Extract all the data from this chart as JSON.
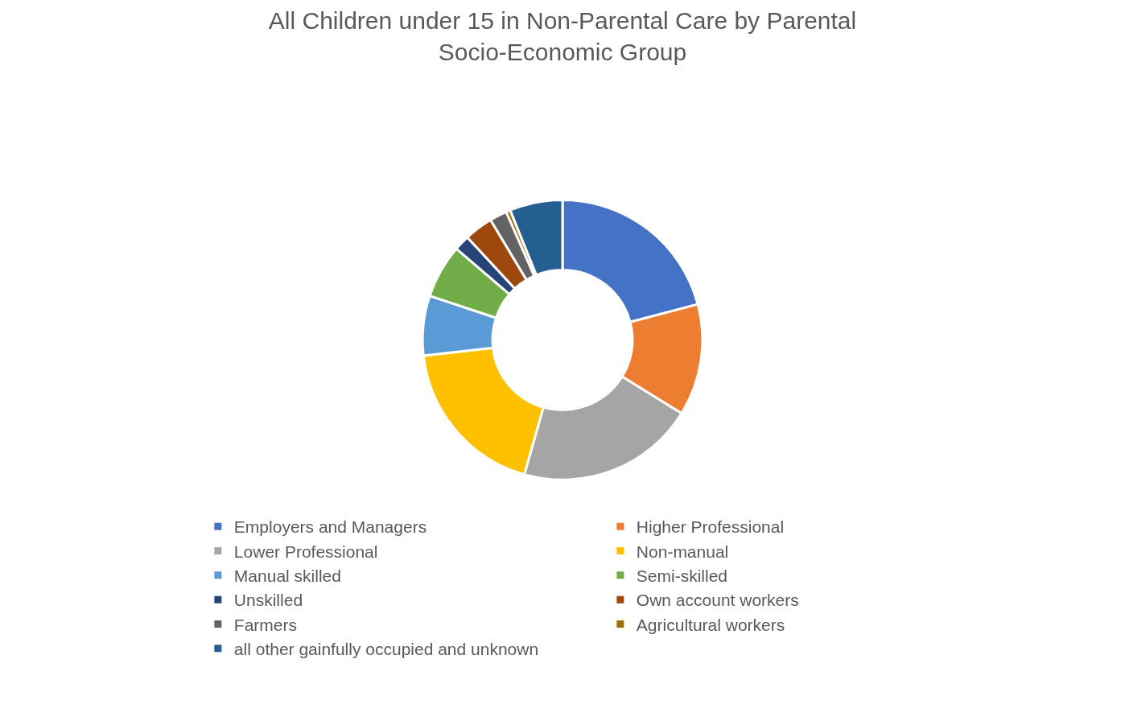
{
  "chart_data": {
    "type": "donut",
    "title": "All Children under 15 in Non-Parental Care by Parental Socio-Economic Group",
    "categories": [
      "Employers and Managers",
      "Higher Professional",
      "Lower Professional",
      "Non-manual",
      "Manual skilled",
      "Semi-skilled",
      "Unskilled",
      "Own account workers",
      "Farmers",
      "Agricultural workers",
      "all other gainfully occupied and unknown"
    ],
    "values": [
      20.9,
      12.9,
      20.6,
      18.8,
      6.9,
      6.2,
      1.8,
      3.3,
      2.0,
      0.5,
      6.1
    ],
    "colors": [
      "#4472c4",
      "#ed7d31",
      "#a5a5a5",
      "#ffc000",
      "#5b9bd5",
      "#70ad47",
      "#264478",
      "#9e480e",
      "#636363",
      "#997300",
      "#255e91"
    ],
    "legend": "bottom"
  }
}
